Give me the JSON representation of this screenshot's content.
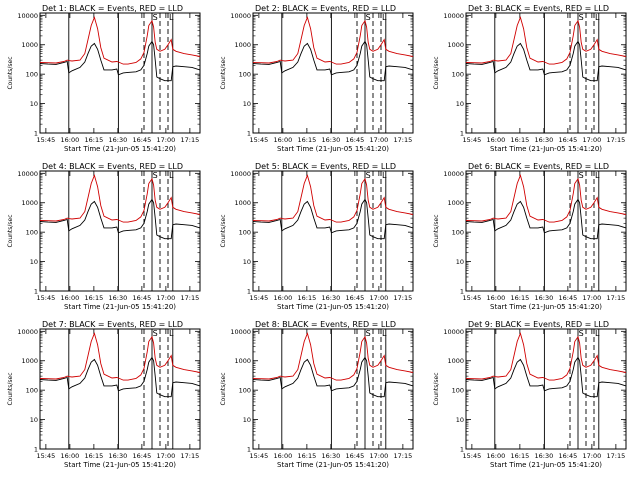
{
  "figure": {
    "xlabel": "Start Time (21-Jun-05 15:41:20)",
    "ylabel": "Counts/sec"
  },
  "chart_data": [
    {
      "type": "line",
      "title": "Det 1: BLACK = Events, RED = LLD",
      "det": 1
    },
    {
      "type": "line",
      "title": "Det 2: BLACK = Events, RED = LLD",
      "det": 2
    },
    {
      "type": "line",
      "title": "Det 3: BLACK = Events, RED = LLD",
      "det": 3
    },
    {
      "type": "line",
      "title": "Det 4: BLACK = Events, RED = LLD",
      "det": 4
    },
    {
      "type": "line",
      "title": "Det 5: BLACK = Events, RED = LLD",
      "det": 5
    },
    {
      "type": "line",
      "title": "Det 6: BLACK = Events, RED = LLD",
      "det": 6
    },
    {
      "type": "line",
      "title": "Det 7: BLACK = Events, RED = LLD",
      "det": 7
    },
    {
      "type": "line",
      "title": "Det 8: BLACK = Events, RED = LLD",
      "det": 8
    },
    {
      "type": "line",
      "title": "Det 9: BLACK = Events, RED = LLD",
      "det": 9
    }
  ],
  "shared": {
    "x_unit": "minutes from 15:41:20",
    "xlim": [
      0,
      100
    ],
    "ylim": [
      1,
      12000
    ],
    "yscale": "log",
    "x_ticks": [
      {
        "value": 3.67,
        "label": "15:45"
      },
      {
        "value": 18.67,
        "label": "16:00"
      },
      {
        "value": 33.67,
        "label": "16:15"
      },
      {
        "value": 48.67,
        "label": "16:30"
      },
      {
        "value": 63.67,
        "label": "16:45"
      },
      {
        "value": 78.67,
        "label": "17:00"
      },
      {
        "value": 93.67,
        "label": "17:15"
      }
    ],
    "y_ticks": [
      {
        "value": 1,
        "label": "1"
      },
      {
        "value": 10,
        "label": "10"
      },
      {
        "value": 100,
        "label": "100"
      },
      {
        "value": 1000,
        "label": "1000"
      },
      {
        "value": 10000,
        "label": "10000"
      }
    ],
    "solid_markers": [
      18,
      49,
      70,
      83
    ],
    "dashed_markers": [
      65,
      75,
      80
    ],
    "region_labels": [
      {
        "x": 72,
        "label": "S"
      },
      {
        "x": 82,
        "label": "L"
      }
    ],
    "series": [
      {
        "name": "Events",
        "color": "#000000",
        "x": [
          0,
          5,
          10,
          15,
          17,
          18,
          20,
          25,
          28,
          30,
          32,
          34,
          36,
          38,
          40,
          45,
          48,
          49,
          52,
          55,
          60,
          63,
          65,
          67,
          68,
          70,
          71,
          72,
          73,
          75,
          78,
          80,
          82,
          83,
          85,
          90,
          95,
          100
        ],
        "values": [
          230,
          220,
          215,
          250,
          270,
          110,
          130,
          170,
          260,
          500,
          900,
          1100,
          700,
          300,
          140,
          140,
          150,
          95,
          110,
          115,
          120,
          140,
          200,
          500,
          900,
          1300,
          1000,
          300,
          80,
          70,
          60,
          60,
          60,
          180,
          190,
          180,
          170,
          140
        ]
      },
      {
        "name": "LLD",
        "color": "#d00000",
        "x": [
          0,
          5,
          10,
          15,
          17,
          18,
          20,
          25,
          28,
          30,
          32,
          34,
          36,
          38,
          40,
          45,
          48,
          49,
          52,
          55,
          60,
          63,
          65,
          67,
          68,
          70,
          71,
          72,
          73,
          75,
          78,
          80,
          82,
          83,
          85,
          90,
          95,
          100
        ],
        "values": [
          250,
          245,
          240,
          270,
          300,
          290,
          280,
          300,
          500,
          1500,
          4500,
          8500,
          3500,
          800,
          350,
          260,
          270,
          260,
          220,
          220,
          250,
          330,
          550,
          2000,
          4500,
          6500,
          4000,
          1200,
          700,
          600,
          700,
          1000,
          1500,
          700,
          600,
          500,
          450,
          400
        ]
      }
    ]
  }
}
